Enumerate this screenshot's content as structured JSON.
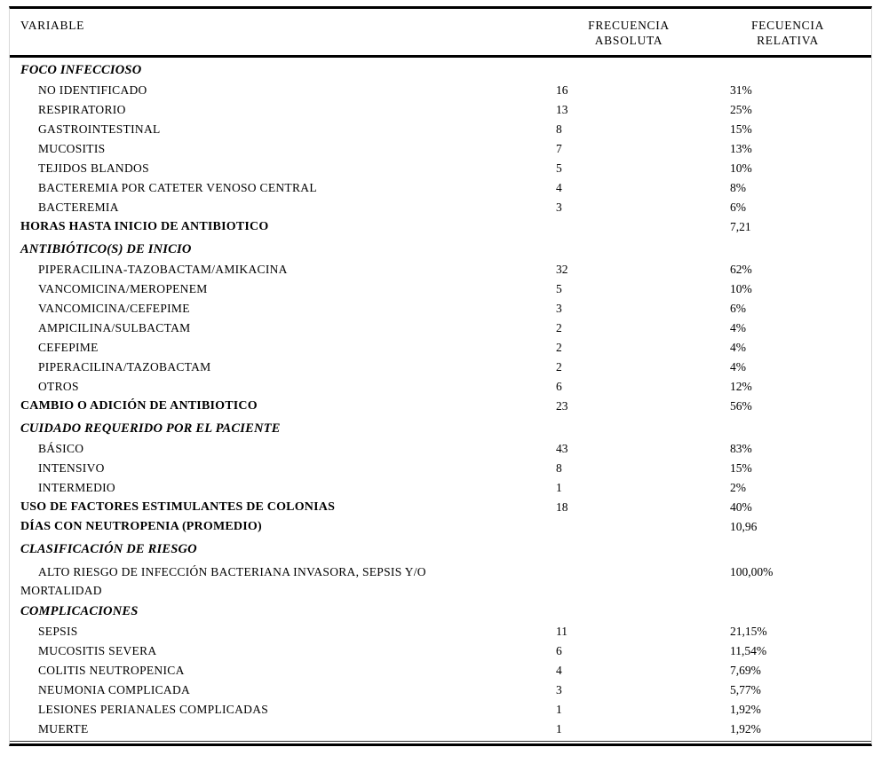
{
  "colors": {
    "rule": "#000000",
    "side_border": "#d8d8d8",
    "text": "#000000"
  },
  "table": {
    "header": {
      "variable": "VARIABLE",
      "absolute_line1": "FRECUENCIA",
      "absolute_line2": "ABSOLUTA",
      "relative_line1": "FECUENCIA",
      "relative_line2": "RELATIVA"
    },
    "rows": [
      {
        "style": "section",
        "label": "FOCO INFECCIOSO",
        "abs": "",
        "rel": ""
      },
      {
        "style": "item",
        "label": "NO IDENTIFICADO",
        "abs": "16",
        "rel": "31%"
      },
      {
        "style": "item",
        "label": "RESPIRATORIO",
        "abs": "13",
        "rel": "25%"
      },
      {
        "style": "item",
        "label": "GASTROINTESTINAL",
        "abs": "8",
        "rel": "15%"
      },
      {
        "style": "item",
        "label": "MUCOSITIS",
        "abs": "7",
        "rel": "13%"
      },
      {
        "style": "item",
        "label": "TEJIDOS BLANDOS",
        "abs": "5",
        "rel": "10%"
      },
      {
        "style": "item",
        "label": "BACTEREMIA POR CATETER VENOSO CENTRAL",
        "abs": "4",
        "rel": "8%"
      },
      {
        "style": "item",
        "label": "BACTEREMIA",
        "abs": "3",
        "rel": "6%"
      },
      {
        "style": "bold",
        "label": "HORAS HASTA INICIO DE ANTIBIOTICO",
        "abs": "",
        "rel": "7,21"
      },
      {
        "style": "section",
        "label": "ANTIBIÓTICO(S) DE INICIO",
        "abs": "",
        "rel": ""
      },
      {
        "style": "item",
        "label": "PIPERACILINA-TAZOBACTAM/AMIKACINA",
        "abs": "32",
        "rel": "62%"
      },
      {
        "style": "item",
        "label": "VANCOMICINA/MEROPENEM",
        "abs": "5",
        "rel": "10%"
      },
      {
        "style": "item",
        "label": "VANCOMICINA/CEFEPIME",
        "abs": "3",
        "rel": "6%"
      },
      {
        "style": "item",
        "label": "AMPICILINA/SULBACTAM",
        "abs": "2",
        "rel": "4%"
      },
      {
        "style": "item",
        "label": "CEFEPIME",
        "abs": "2",
        "rel": "4%"
      },
      {
        "style": "item",
        "label": "PIPERACILINA/TAZOBACTAM",
        "abs": "2",
        "rel": "4%"
      },
      {
        "style": "item",
        "label": "OTROS",
        "abs": "6",
        "rel": "12%"
      },
      {
        "style": "bold",
        "label": "CAMBIO O ADICIÓN DE ANTIBIOTICO",
        "abs": "23",
        "rel": "56%"
      },
      {
        "style": "section",
        "label": "CUIDADO REQUERIDO POR EL PACIENTE",
        "abs": "",
        "rel": ""
      },
      {
        "style": "item",
        "label": "BÁSICO",
        "abs": "43",
        "rel": "83%"
      },
      {
        "style": "item",
        "label": "INTENSIVO",
        "abs": "8",
        "rel": "15%"
      },
      {
        "style": "item",
        "label": "INTERMEDIO",
        "abs": "1",
        "rel": "2%"
      },
      {
        "style": "bold",
        "label": "USO DE FACTORES ESTIMULANTES DE COLONIAS",
        "abs": "18",
        "rel": "40%"
      },
      {
        "style": "bold",
        "label": "DÍAS CON NEUTROPENIA (PROMEDIO)",
        "abs": "",
        "rel": "10,96"
      },
      {
        "style": "section",
        "label": "CLASIFICACIÓN DE RIESGO",
        "abs": "",
        "rel": ""
      },
      {
        "style": "item2",
        "label": "ALTO RIESGO DE INFECCIÓN BACTERIANA INVASORA, SEPSIS Y/O",
        "label2": "MORTALIDAD",
        "abs": "",
        "rel": "100,00%"
      },
      {
        "style": "section",
        "label": "COMPLICACIONES",
        "abs": "",
        "rel": ""
      },
      {
        "style": "item",
        "label": "SEPSIS",
        "abs": "11",
        "rel": "21,15%"
      },
      {
        "style": "item",
        "label": "MUCOSITIS SEVERA",
        "abs": "6",
        "rel": "11,54%"
      },
      {
        "style": "item",
        "label": "COLITIS NEUTROPENICA",
        "abs": "4",
        "rel": "7,69%"
      },
      {
        "style": "item",
        "label": "NEUMONIA COMPLICADA",
        "abs": "3",
        "rel": "5,77%"
      },
      {
        "style": "item",
        "label": "LESIONES PERIANALES COMPLICADAS",
        "abs": "1",
        "rel": "1,92%"
      },
      {
        "style": "item",
        "label": "MUERTE",
        "abs": "1",
        "rel": "1,92%"
      }
    ]
  }
}
